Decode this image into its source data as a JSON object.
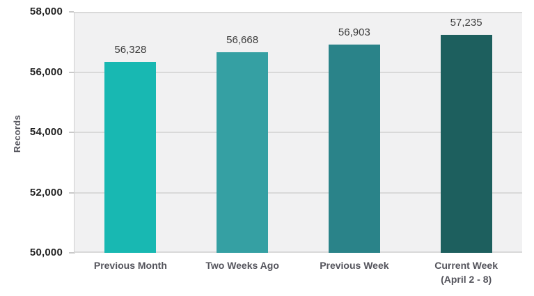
{
  "chart_data": {
    "type": "bar",
    "title": "",
    "xlabel": "",
    "ylabel": "Records",
    "categories": [
      "Previous Month",
      "Two Weeks Ago",
      "Previous Week",
      "Current Week"
    ],
    "category_sublabels": [
      "",
      "",
      "",
      "(April 2 - 8)"
    ],
    "values": [
      56328,
      56668,
      56903,
      57235
    ],
    "data_labels": [
      "56,328",
      "56,668",
      "56,903",
      "57,235"
    ],
    "bar_colors": [
      "#18b8b2",
      "#35a0a3",
      "#2a8389",
      "#1d5f5e"
    ],
    "ylim": [
      50000,
      58000
    ],
    "ytick_interval": 2000,
    "ytick_labels": [
      "50,000",
      "52,000",
      "54,000",
      "56,000",
      "58,000"
    ],
    "grid": true,
    "legend": false,
    "plot_background": "#f1f1f2",
    "gridline_color": "#d9d9d9",
    "page_background": "#ffffff",
    "tick_label_color": "#222222",
    "category_label_color": "#54545c",
    "data_label_color": "#3d3d3d"
  }
}
